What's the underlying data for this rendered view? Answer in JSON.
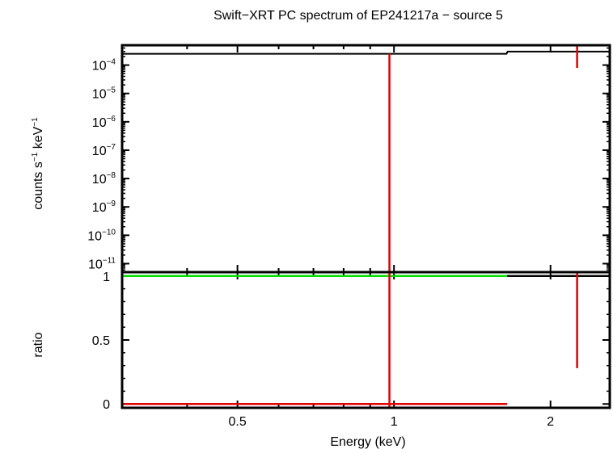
{
  "chart_data": {
    "type": "line",
    "title": "Swift−XRT PC spectrum of EP241217a − source 5",
    "xlabel": "Energy (keV)",
    "x_scale": "log",
    "xlim": [
      0.3,
      2.6
    ],
    "x_ticks": [
      {
        "value": 0.5,
        "label": "0.5"
      },
      {
        "value": 1,
        "label": "1"
      },
      {
        "value": 2,
        "label": "2"
      }
    ],
    "panels": [
      {
        "id": "spectrum",
        "ylabel_base": "counts s",
        "ylabel_exp1": "−1",
        "ylabel_mid": " keV",
        "ylabel_exp2": "−1",
        "y_scale": "log",
        "ylim_exp": [
          -11.3,
          -3.3
        ],
        "y_ticks": [
          {
            "value": -4,
            "base": "10",
            "exp": "−4"
          },
          {
            "value": -5,
            "base": "10",
            "exp": "−5"
          },
          {
            "value": -6,
            "base": "10",
            "exp": "−6"
          },
          {
            "value": -7,
            "base": "10",
            "exp": "−7"
          },
          {
            "value": -8,
            "base": "10",
            "exp": "−8"
          },
          {
            "value": -9,
            "base": "10",
            "exp": "−9"
          },
          {
            "value": -10,
            "base": "10",
            "exp": "−10"
          },
          {
            "value": -11,
            "base": "10",
            "exp": "−11"
          }
        ],
        "series": [
          {
            "name": "model",
            "color": "#000000",
            "steps": [
              {
                "x0": 0.3,
                "x1": 1.65,
                "y": 0.00025
              },
              {
                "x0": 1.65,
                "x1": 2.6,
                "y": 0.0003
              }
            ]
          },
          {
            "name": "data",
            "color": "#e00000",
            "errorbars": [
              {
                "x": 0.98,
                "ylo_exp": -11.3,
                "yhi_exp": -3.6
              },
              {
                "x": 2.25,
                "ylo_exp": -4.1,
                "yhi_exp": -3.3
              }
            ]
          }
        ]
      },
      {
        "id": "ratio",
        "ylabel": "ratio",
        "y_scale": "linear",
        "ylim": [
          -0.03,
          1.03
        ],
        "y_ticks": [
          {
            "value": 0,
            "label": "0"
          },
          {
            "value": 0.5,
            "label": "0.5"
          },
          {
            "value": 1,
            "label": "1"
          }
        ],
        "series": [
          {
            "name": "unity",
            "color": "#00dd00",
            "y": 1
          },
          {
            "name": "ratio model",
            "color": "#000000",
            "steps": [
              {
                "x0": 1.65,
                "x1": 2.6,
                "y": 1.0
              }
            ]
          },
          {
            "name": "ratio data",
            "color": "#e00000",
            "steps": [
              {
                "x0": 0.3,
                "x1": 1.65,
                "y": 0.0
              }
            ],
            "errorbars": [
              {
                "x": 0.98,
                "ylo": -0.03,
                "yhi": 1.03
              },
              {
                "x": 2.25,
                "ylo": 0.28,
                "yhi": 1.03
              }
            ]
          }
        ]
      }
    ]
  }
}
